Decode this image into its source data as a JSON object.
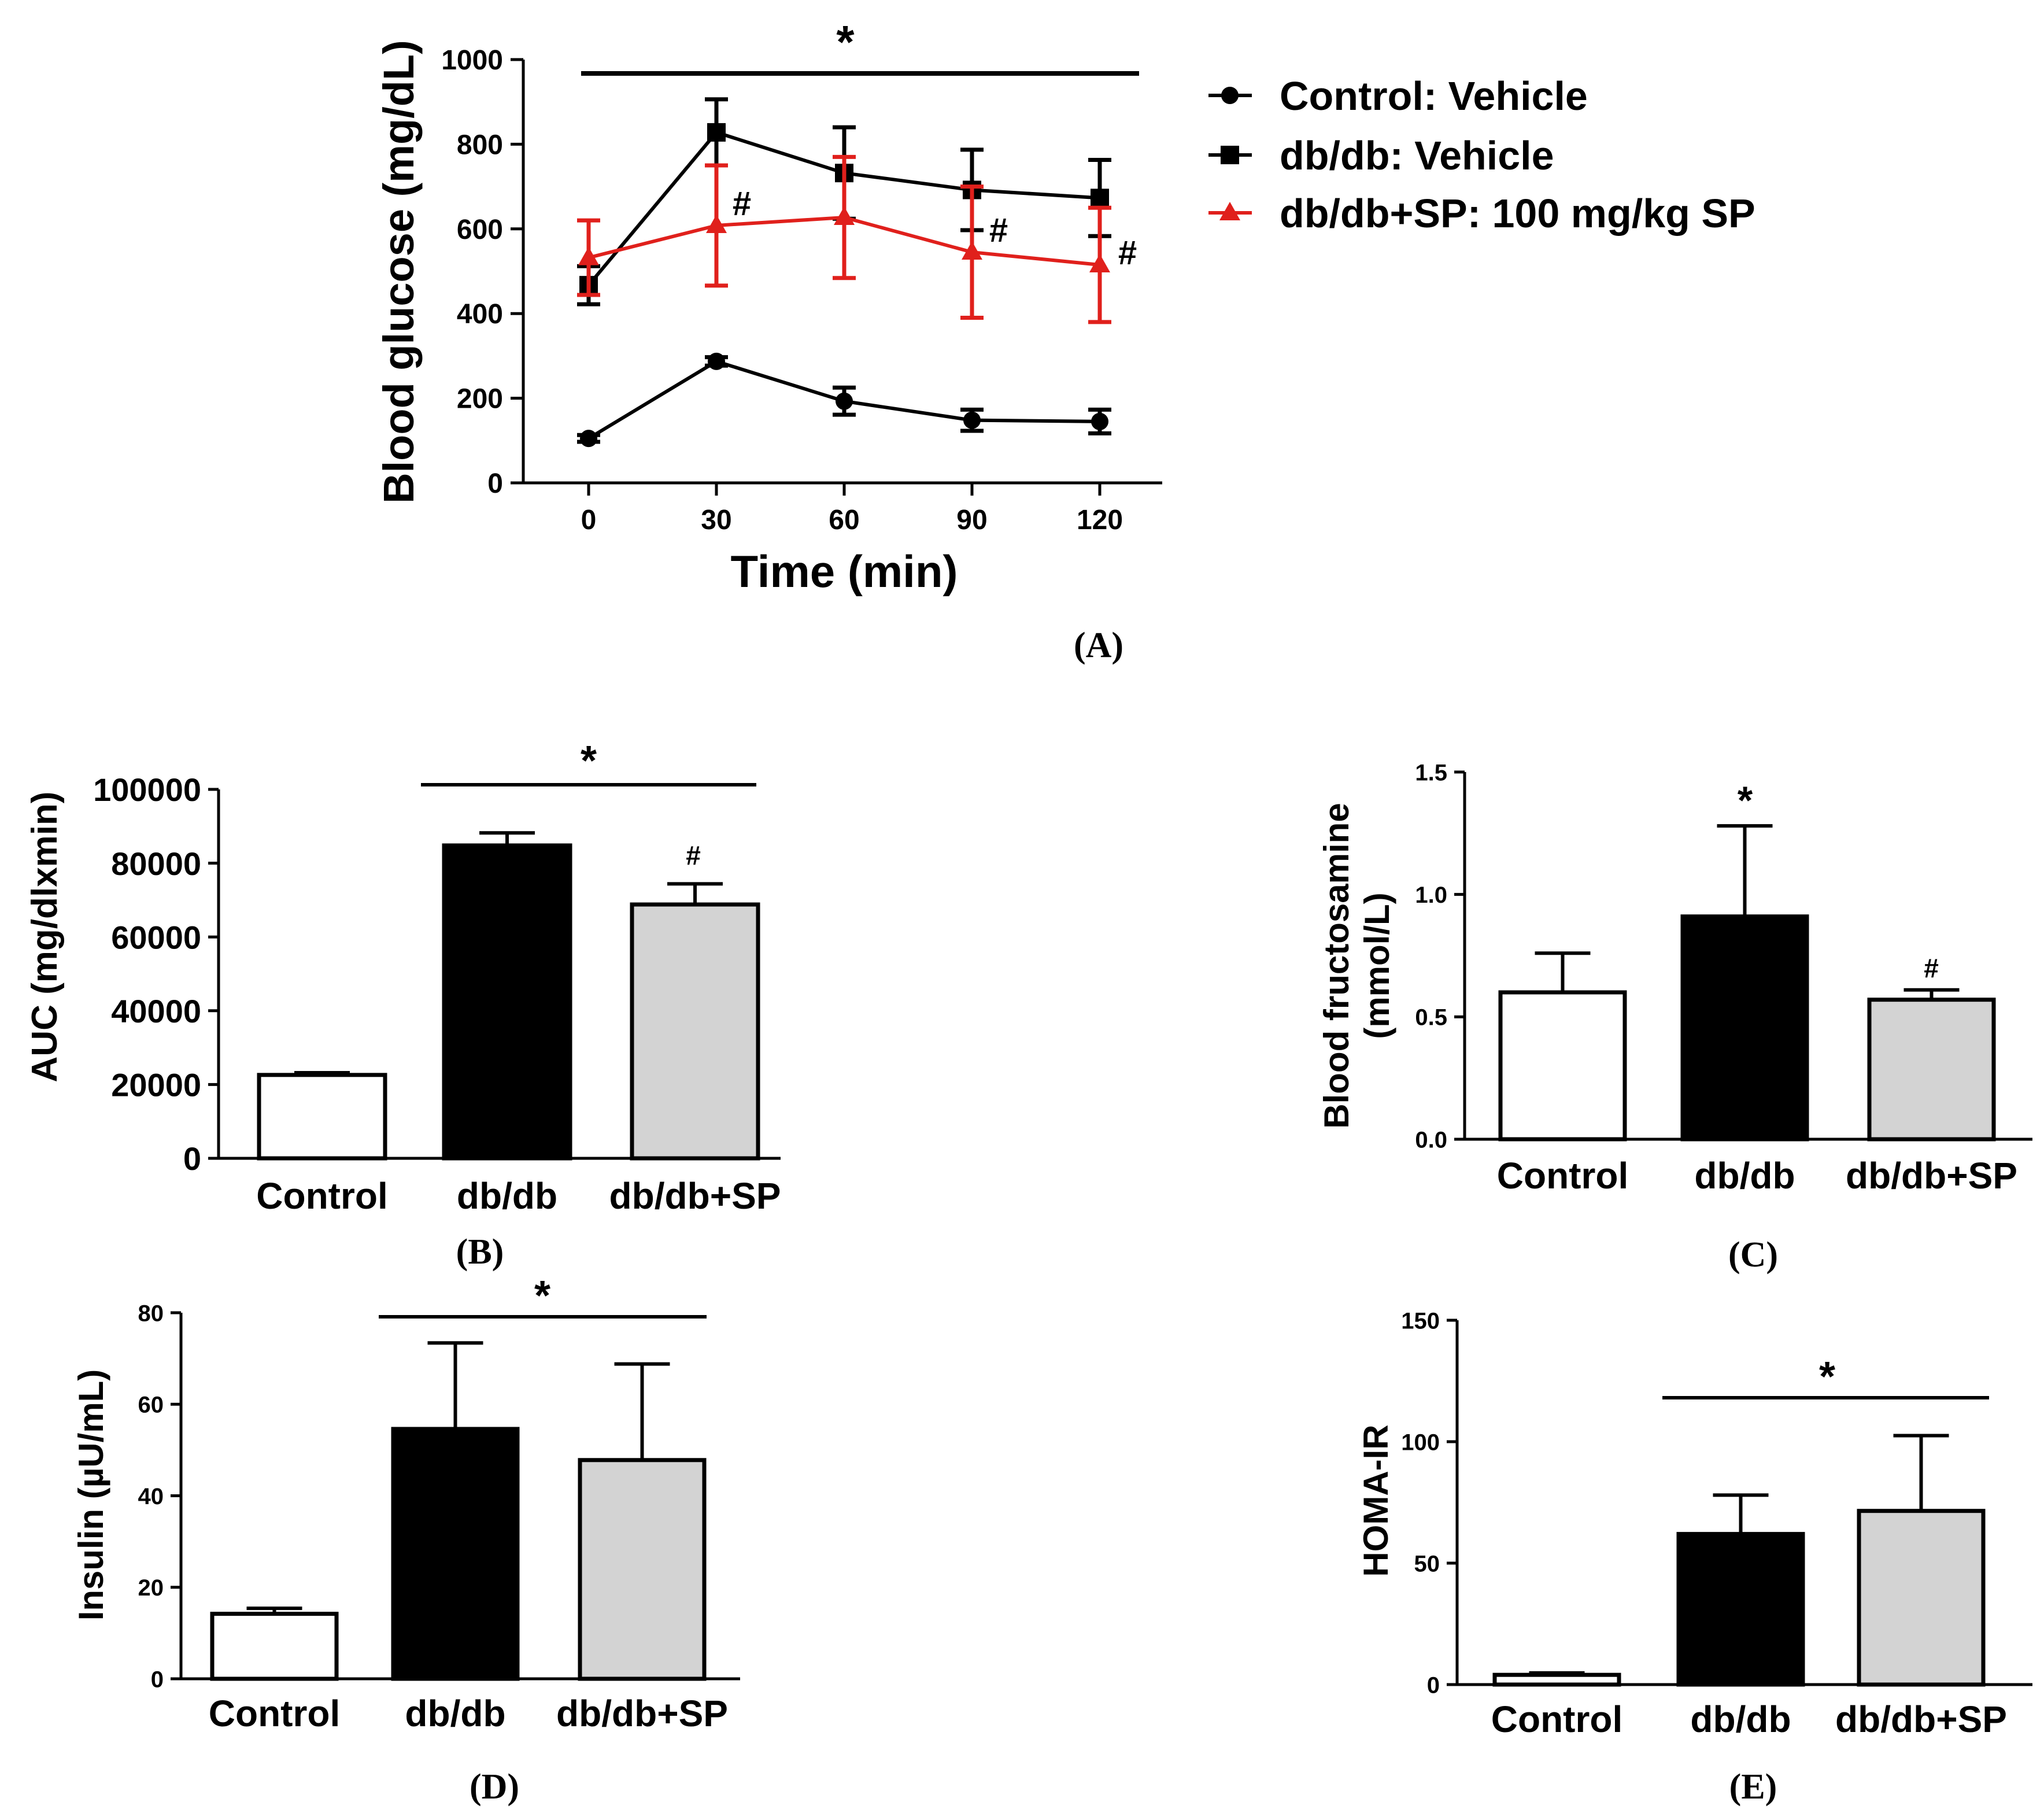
{
  "chart_data": [
    {
      "panel": "A",
      "type": "line",
      "xlabel": "Time (min)",
      "ylabel": "Blood glucose (mg/dL)",
      "x": [
        0,
        30,
        60,
        90,
        120
      ],
      "xticks": [
        "0",
        "30",
        "60",
        "90",
        "120"
      ],
      "yticks": [
        "0",
        "200",
        "400",
        "600",
        "800",
        "1000"
      ],
      "ylim": [
        0,
        1000
      ],
      "series": [
        {
          "name": "Control: Vehicle",
          "color": "#000000",
          "marker": "circle",
          "values": [
            105,
            287,
            193,
            148,
            145
          ],
          "errors": [
            8,
            10,
            32,
            25,
            28
          ]
        },
        {
          "name": "db/db: Vehicle",
          "color": "#000000",
          "marker": "square",
          "values": [
            467,
            828,
            732,
            692,
            673
          ],
          "errors": [
            45,
            78,
            108,
            95,
            90
          ]
        },
        {
          "name": "db/db+SP: 100 mg/kg SP",
          "color": "#e0201c",
          "marker": "triangle",
          "values": [
            532,
            608,
            627,
            545,
            515
          ],
          "errors": [
            88,
            142,
            143,
            155,
            135
          ]
        }
      ],
      "significance_bar": "*",
      "annotations": [
        "#",
        "#",
        "#"
      ],
      "legend": "right"
    },
    {
      "panel": "B",
      "type": "bar",
      "categories": [
        "Control",
        "db/db",
        "db/db+SP"
      ],
      "values": [
        22600,
        84800,
        68800
      ],
      "errors": [
        600,
        3400,
        5600
      ],
      "ylabel": "AUC (mg/dlxmin)",
      "yticks": [
        "0",
        "20000",
        "40000",
        "60000",
        "80000",
        "100000"
      ],
      "ylim": [
        0,
        100000
      ],
      "significance_bar": "*",
      "annotations": [
        "#"
      ]
    },
    {
      "panel": "C",
      "type": "bar",
      "categories": [
        "Control",
        "db/db",
        "db/db+SP"
      ],
      "values": [
        0.6,
        0.91,
        0.57
      ],
      "errors": [
        0.16,
        0.37,
        0.04
      ],
      "ylabel": [
        "Blood fructosamine",
        "(mmol/L)"
      ],
      "yticks": [
        "0.0",
        "0.5",
        "1.0",
        "1.5"
      ],
      "ylim": [
        0,
        1.5
      ],
      "annotations": [
        "*",
        "#"
      ]
    },
    {
      "panel": "D",
      "type": "bar",
      "categories": [
        "Control",
        "db/db",
        "db/db+SP"
      ],
      "values": [
        14.2,
        54.6,
        47.8
      ],
      "errors": [
        1.2,
        18.8,
        21.0
      ],
      "ylabel": "Insulin (µU/mL)",
      "yticks": [
        "0",
        "20",
        "40",
        "60",
        "80"
      ],
      "ylim": [
        0,
        80
      ],
      "significance_bar": "*"
    },
    {
      "panel": "E",
      "type": "bar",
      "categories": [
        "Control",
        "db/db",
        "db/db+SP"
      ],
      "values": [
        4,
        62,
        71.5
      ],
      "errors": [
        0.8,
        16,
        31
      ],
      "ylabel": "HOMA-IR",
      "yticks": [
        "0",
        "50",
        "100",
        "150"
      ],
      "ylim": [
        0,
        150
      ],
      "significance_bar": "*"
    }
  ],
  "panel_labels": [
    "(A)",
    "(B)",
    "(C)",
    "(D)",
    "(E)"
  ],
  "bar_fills": [
    "#ffffff",
    "#000000",
    "#d3d3d3"
  ]
}
